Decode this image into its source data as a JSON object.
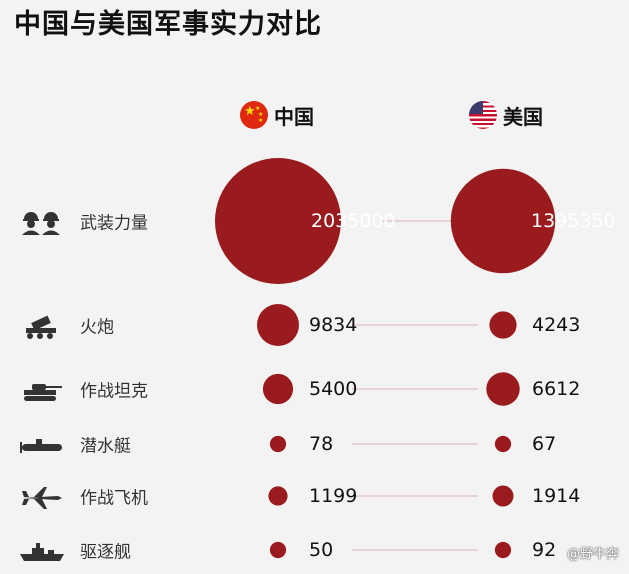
{
  "title": "中国与美国军事实力对比",
  "countries": {
    "china": "中国",
    "usa": "美国"
  },
  "colors": {
    "bubble": "#991b1e",
    "connector": "#d9b3b3"
  },
  "chart_data": {
    "type": "bubble-comparison",
    "categories": [
      "武装力量",
      "火炮",
      "作战坦克",
      "潜水艇",
      "作战飞机",
      "驱逐舰"
    ],
    "series": [
      {
        "name": "中国",
        "values": [
          2035000,
          9834,
          5400,
          78,
          1199,
          50
        ]
      },
      {
        "name": "美国",
        "values": [
          1395350,
          4243,
          6612,
          67,
          1914,
          92
        ]
      }
    ],
    "labels": {
      "china": [
        "2035000",
        "9834",
        "5400",
        "78",
        "1199",
        "50"
      ],
      "usa": [
        "1395350",
        "4243",
        "6612",
        "67",
        "1914",
        "92"
      ]
    }
  },
  "row_icons": [
    "soldiers-icon",
    "artillery-icon",
    "tank-icon",
    "submarine-icon",
    "fighter-jet-icon",
    "destroyer-icon"
  ],
  "watermark": "@野牛奔"
}
